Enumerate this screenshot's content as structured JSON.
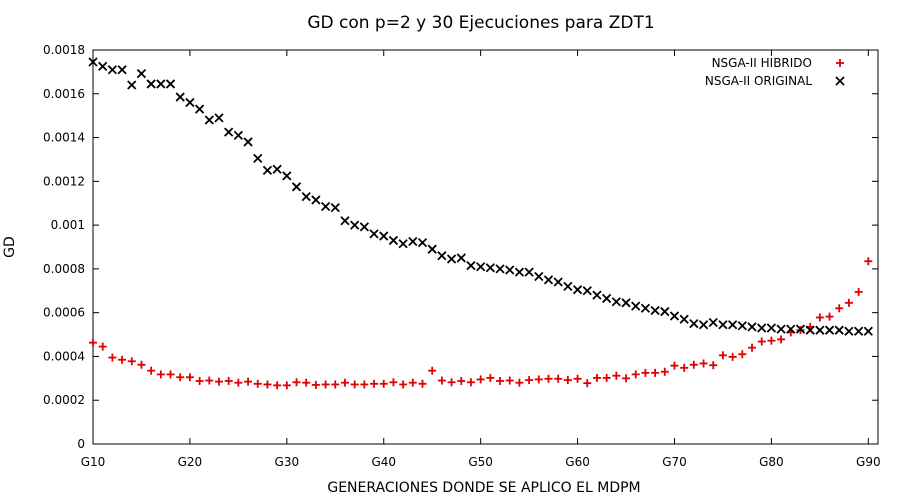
{
  "chart_data": {
    "type": "scatter",
    "title": "GD con p=2 y 30 Ejecuciones para ZDT1",
    "xlabel": "GENERACIONES DONDE SE APLICO EL MDPM",
    "ylabel": "GD",
    "xlim": [
      10,
      91
    ],
    "ylim": [
      0,
      0.0018
    ],
    "x_ticks": [
      {
        "value": 10,
        "label": "G10"
      },
      {
        "value": 20,
        "label": "G20"
      },
      {
        "value": 30,
        "label": "G30"
      },
      {
        "value": 40,
        "label": "G40"
      },
      {
        "value": 50,
        "label": "G50"
      },
      {
        "value": 60,
        "label": "G60"
      },
      {
        "value": 70,
        "label": "G70"
      },
      {
        "value": 80,
        "label": "G80"
      },
      {
        "value": 90,
        "label": "G90"
      }
    ],
    "y_ticks": [
      {
        "value": 0,
        "label": "0"
      },
      {
        "value": 0.0002,
        "label": "0.0002"
      },
      {
        "value": 0.0004,
        "label": "0.0004"
      },
      {
        "value": 0.0006,
        "label": "0.0006"
      },
      {
        "value": 0.0008,
        "label": "0.0008"
      },
      {
        "value": 0.001,
        "label": "0.001"
      },
      {
        "value": 0.0012,
        "label": "0.0012"
      },
      {
        "value": 0.0014,
        "label": "0.0014"
      },
      {
        "value": 0.0016,
        "label": "0.0016"
      },
      {
        "value": 0.0018,
        "label": "0.0018"
      }
    ],
    "legend_position": "top-right",
    "x": [
      10,
      11,
      12,
      13,
      14,
      15,
      16,
      17,
      18,
      19,
      20,
      21,
      22,
      23,
      24,
      25,
      26,
      27,
      28,
      29,
      30,
      31,
      32,
      33,
      34,
      35,
      36,
      37,
      38,
      39,
      40,
      41,
      42,
      43,
      44,
      45,
      46,
      47,
      48,
      49,
      50,
      51,
      52,
      53,
      54,
      55,
      56,
      57,
      58,
      59,
      60,
      61,
      62,
      63,
      64,
      65,
      66,
      67,
      68,
      69,
      70,
      71,
      72,
      73,
      74,
      75,
      76,
      77,
      78,
      79,
      80,
      81,
      82,
      83,
      84,
      85,
      86,
      87,
      88,
      89,
      90
    ],
    "series": [
      {
        "name": "NSGA-II HIBRIDO",
        "marker": "plus",
        "color": "#e00000",
        "values": [
          0.000463,
          0.000445,
          0.000395,
          0.000385,
          0.000378,
          0.000362,
          0.000335,
          0.000318,
          0.000318,
          0.000305,
          0.000305,
          0.000288,
          0.00029,
          0.000285,
          0.000288,
          0.00028,
          0.000285,
          0.000275,
          0.000272,
          0.000268,
          0.000268,
          0.000282,
          0.00028,
          0.00027,
          0.000272,
          0.000272,
          0.00028,
          0.000272,
          0.000272,
          0.000275,
          0.000275,
          0.000282,
          0.000272,
          0.00028,
          0.000275,
          0.000335,
          0.00029,
          0.000282,
          0.000288,
          0.000282,
          0.000295,
          0.000302,
          0.000288,
          0.00029,
          0.00028,
          0.000292,
          0.000295,
          0.000298,
          0.000298,
          0.000292,
          0.000298,
          0.000278,
          0.000302,
          0.000302,
          0.000312,
          0.0003,
          0.000318,
          0.000325,
          0.000325,
          0.00033,
          0.000358,
          0.000348,
          0.000362,
          0.000368,
          0.00036,
          0.000405,
          0.000398,
          0.00041,
          0.00044,
          0.000468,
          0.000472,
          0.000478,
          0.00051,
          0.00052,
          0.000535,
          0.000578,
          0.000582,
          0.00062,
          0.000645,
          0.000695,
          0.000835
        ]
      },
      {
        "name": "NSGA-II ORIGINAL",
        "marker": "cross",
        "color": "#000000",
        "values": [
          0.001745,
          0.001725,
          0.00171,
          0.00171,
          0.00164,
          0.001692,
          0.001645,
          0.001645,
          0.001645,
          0.001585,
          0.00156,
          0.00153,
          0.00148,
          0.00149,
          0.001425,
          0.00141,
          0.00138,
          0.001305,
          0.00125,
          0.001255,
          0.001225,
          0.001175,
          0.00113,
          0.001115,
          0.001085,
          0.00108,
          0.00102,
          0.001,
          0.000992,
          0.00096,
          0.00095,
          0.00093,
          0.000915,
          0.000925,
          0.00092,
          0.00089,
          0.00086,
          0.000845,
          0.00085,
          0.000815,
          0.00081,
          0.000805,
          0.0008,
          0.000795,
          0.000785,
          0.000785,
          0.000765,
          0.00075,
          0.00074,
          0.00072,
          0.000705,
          0.0007,
          0.00068,
          0.000665,
          0.00065,
          0.000645,
          0.00063,
          0.00062,
          0.00061,
          0.000605,
          0.000585,
          0.00057,
          0.00055,
          0.000545,
          0.000555,
          0.000545,
          0.000545,
          0.00054,
          0.000535,
          0.00053,
          0.00053,
          0.000525,
          0.000525,
          0.000525,
          0.00052,
          0.00052,
          0.00052,
          0.00052,
          0.000515,
          0.000515,
          0.000515
        ]
      }
    ]
  }
}
